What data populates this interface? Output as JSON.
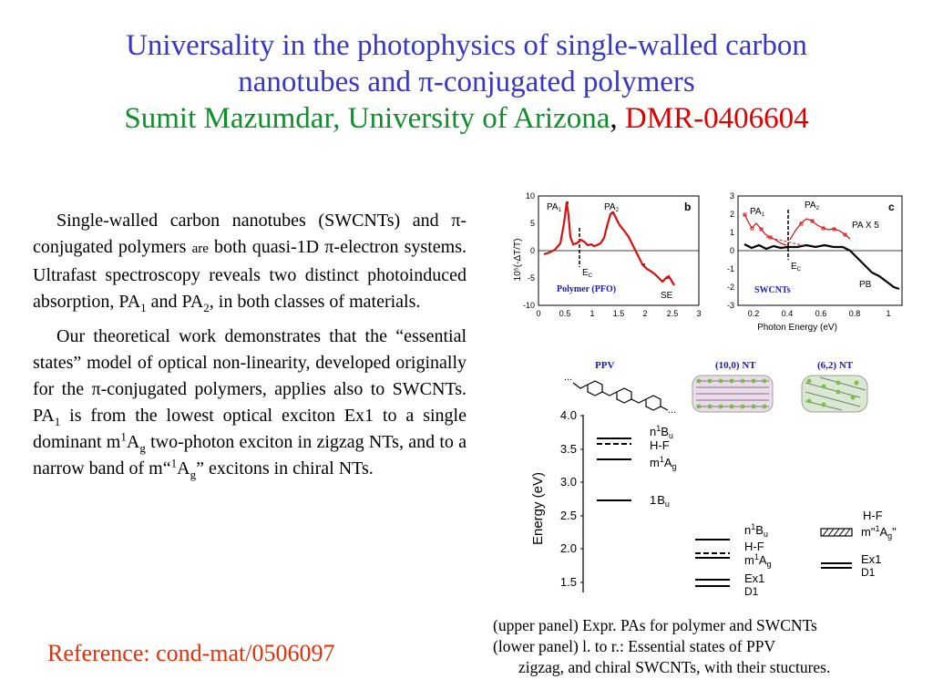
{
  "title": {
    "line1": "Universality in the photophysics of single-walled carbon",
    "line2": "nanotubes and π-conjugated polymers",
    "author": "Sumit Mazumdar",
    "affiliation": "University of Arizona",
    "grant": "DMR-0406604"
  },
  "body": {
    "p1": {
      "t1": "Single-walled carbon nanotubes (SWCNTs) and π-conjugated polymers ",
      "t2": "are",
      "t3": " both quasi-1D π-electron  systems.   Ultrafast spectroscopy reveals two distinct photoinduced absorption, PA",
      "s1": "1",
      "t4": " and PA",
      "s2": "2",
      "t5": ", in both classes of materials."
    },
    "p2": {
      "t1": "Our theoretical work demonstrates that the “essential states”  model  of  optical  non-linearity,  developed  originally  for  the  π-conjugated polymers,  applies  also  to SWCNTs.   PA",
      "s1": "1",
      "t2": " is from the lowest optical exciton Ex1 to a single dominant m",
      "sup1": "1",
      "t3": "A",
      "s2": "g",
      "t4": " two-photon exciton in zigzag NTs, and to a narrow band of m“",
      "sup2": "1",
      "t5": "A",
      "s3": "g",
      "t6": "” excitons in chiral NTs."
    }
  },
  "reference": "Reference: cond-mat/0506097",
  "caption": {
    "line1": "(upper panel)  Expr. PAs for polymer and SWCNTs",
    "line2": "(lower panel)  l. to r.:  Essential states of PPV",
    "line3": "zigzag, and chiral SWCNTs, with their stuctures."
  },
  "colors": {
    "title": "#3636c8",
    "author": "#0f8f2a",
    "grant": "#e00000",
    "reference": "#e0300b",
    "data": "#d41010"
  },
  "upper_figure": {
    "ylabel": "10⁵(-ΔT/T)",
    "xlabel": "Photon Energy (eV)",
    "panel_b": {
      "letter": "b",
      "pa1": "PA",
      "pa1_sub": "1",
      "pa2": "PA",
      "pa2_sub": "2",
      "ec": "E",
      "ec_sub": "C",
      "se": "SE",
      "tag": "Polymer (PFO)",
      "yticks": [
        "10",
        "5",
        "0",
        "-5",
        "-10"
      ],
      "xticks": [
        "0",
        "0.5",
        "1",
        "1.5",
        "2",
        "2.5",
        "3"
      ]
    },
    "panel_c": {
      "letter": "c",
      "pa1": "PA",
      "pa1_sub": "1",
      "pa2": "PA",
      "pa2_sub": "2",
      "pax5": "PA X 5",
      "ec": "E",
      "ec_sub": "C",
      "pb": "PB",
      "tag": "SWCNTs",
      "yticks": [
        "3",
        "2",
        "1",
        "0",
        "-1",
        "-2",
        "-3"
      ],
      "xticks": [
        "0.2",
        "0.4",
        "0.6",
        "0.8",
        "1"
      ]
    }
  },
  "lower_figure": {
    "ppv_label": "PPV",
    "zigzag_label": "(10,0) NT",
    "chiral_label": "(6,2) NT",
    "ellipsis": "...",
    "ylabel": "Energy (eV)",
    "yticks": [
      "4.0",
      "3.5",
      "3.0",
      "2.5",
      "2.0",
      "1.5"
    ],
    "ppv": {
      "n1bu": "n",
      "hf": "H-F",
      "m1ag": "m",
      "b1u": "1",
      "bu": "B",
      "ag": "A",
      "u": "u",
      "g": "g",
      "sup": "1"
    },
    "zigzag": {
      "ex1": "Ex1",
      "d1": "D1",
      "hf": "H-F"
    },
    "chiral": {
      "hf": "H-F",
      "m1ag_pre": "m\"",
      "m1ag_post": "\"",
      "ex1": "Ex1",
      "d1": "D1"
    }
  }
}
